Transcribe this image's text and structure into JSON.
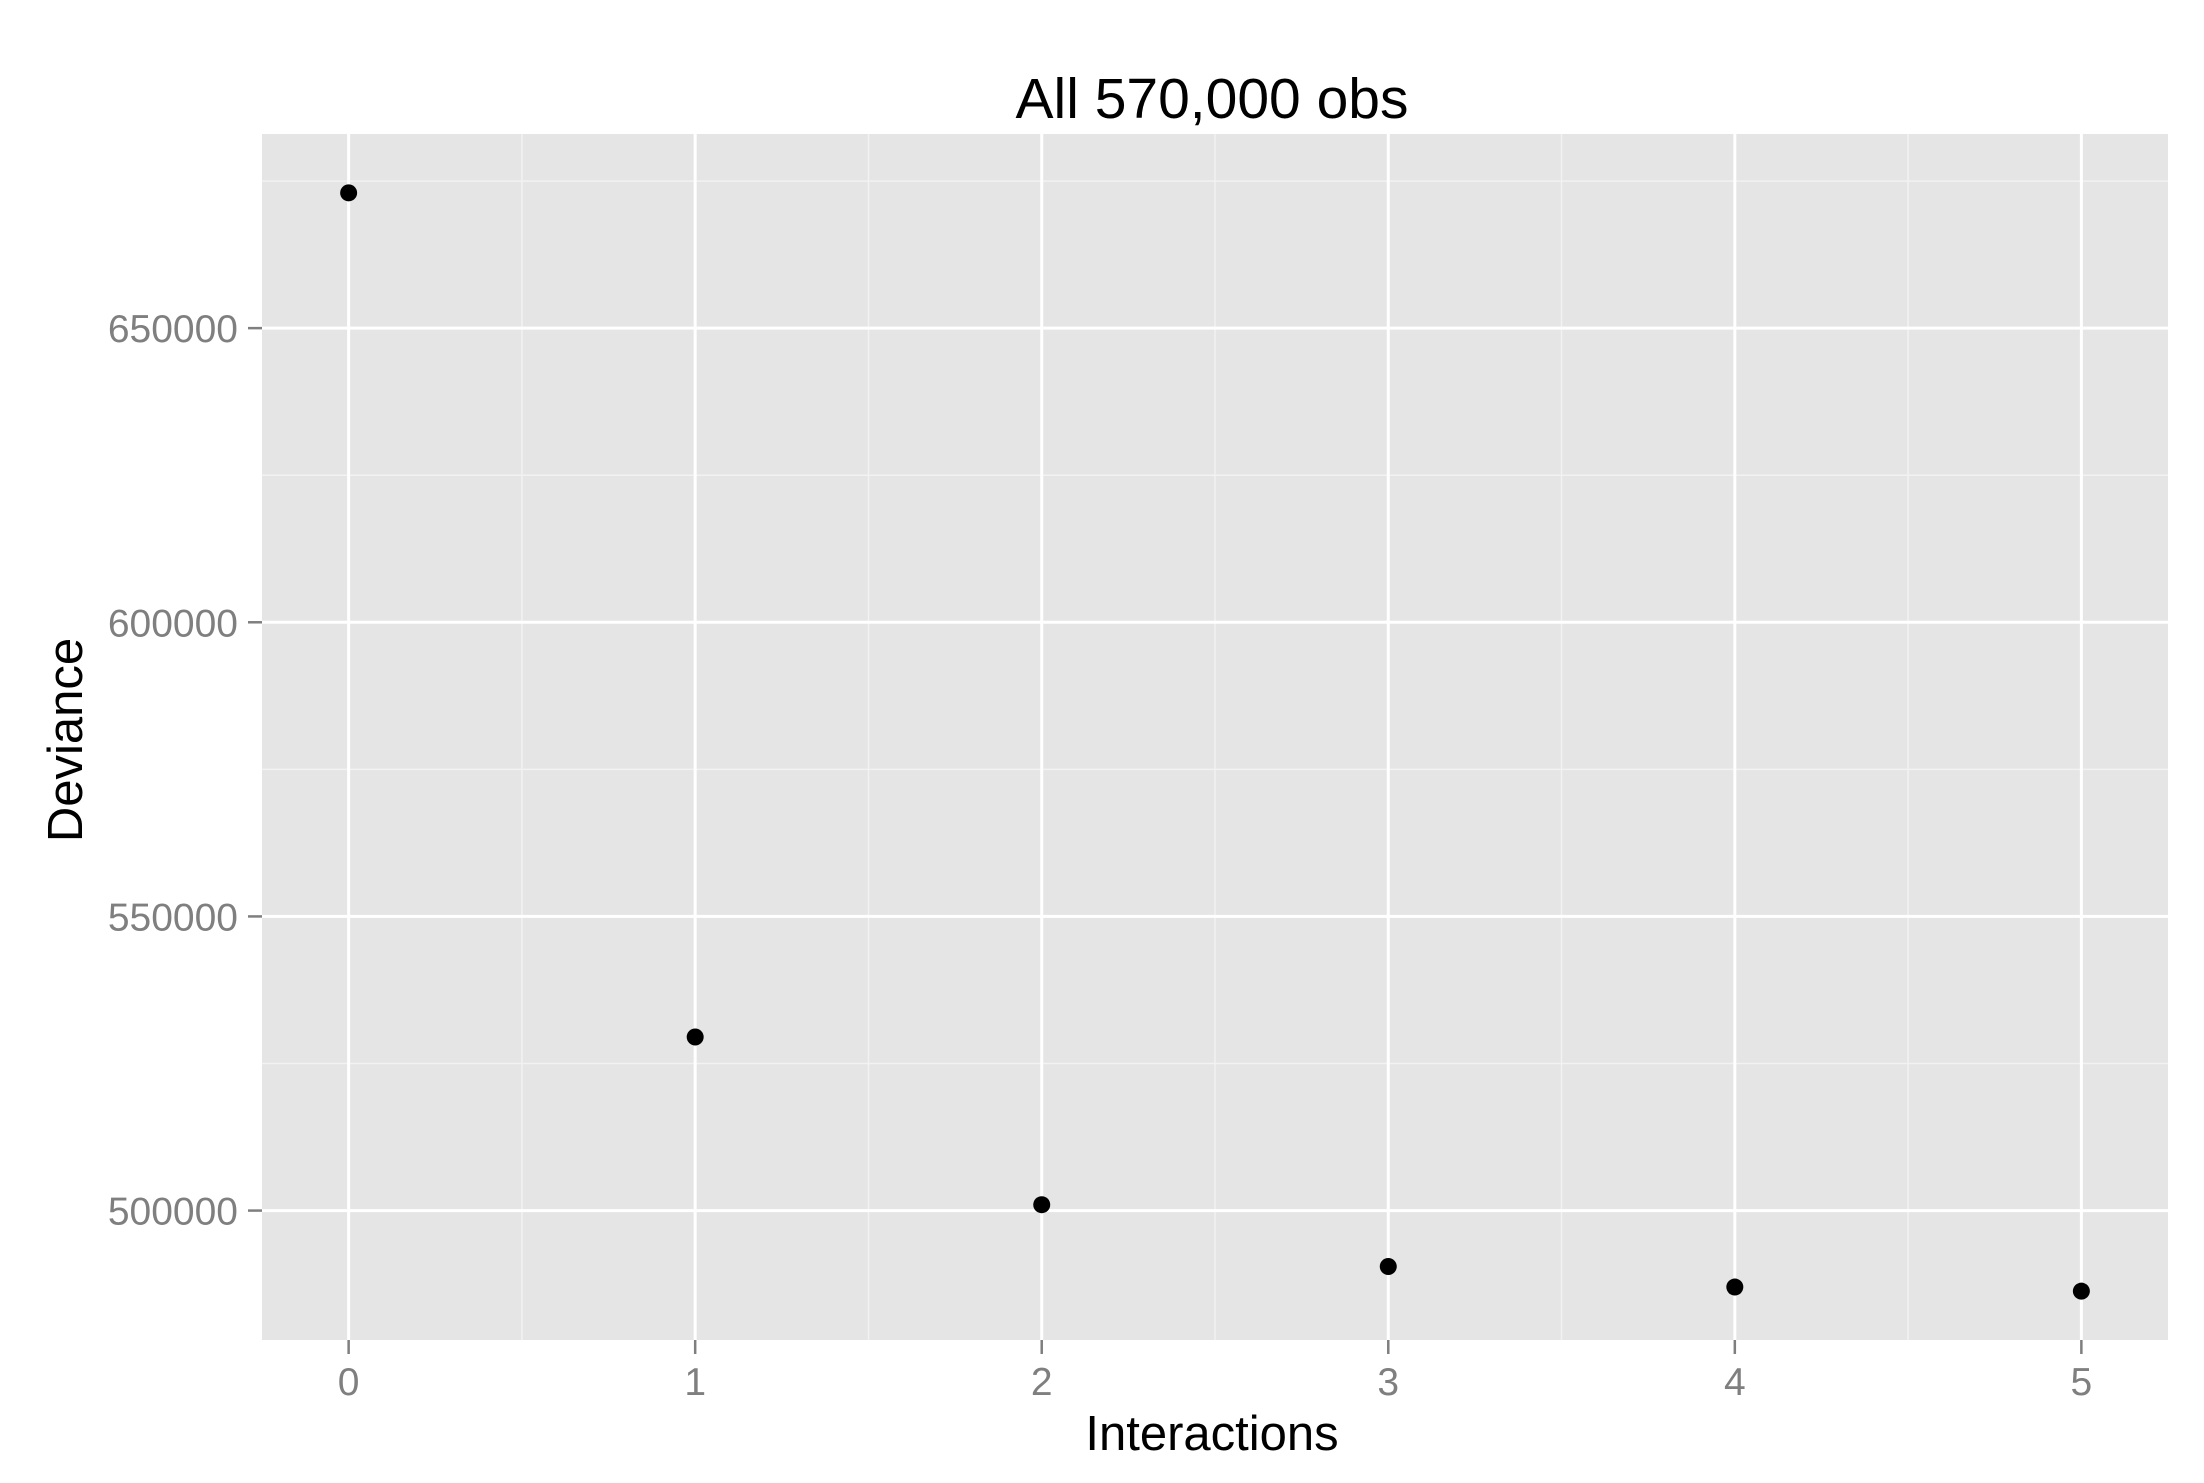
{
  "chart_data": {
    "type": "scatter",
    "title": "All 570,000 obs",
    "xlabel": "Interactions",
    "ylabel": "Deviance",
    "x": [
      0,
      1,
      2,
      3,
      4,
      5
    ],
    "y": [
      673000,
      529500,
      501000,
      490500,
      487000,
      486300
    ],
    "xlim": [
      -0.25,
      5.25
    ],
    "ylim": [
      478000,
      683000
    ],
    "x_ticks": [
      0,
      1,
      2,
      3,
      4,
      5
    ],
    "y_ticks": [
      500000,
      550000,
      600000,
      650000
    ],
    "grid": true,
    "legend": "none",
    "colors": {
      "panel_background": "#e5e5e5",
      "grid_major": "#ffffff",
      "grid_minor": "#f2f2f2",
      "point": "#000000"
    }
  }
}
